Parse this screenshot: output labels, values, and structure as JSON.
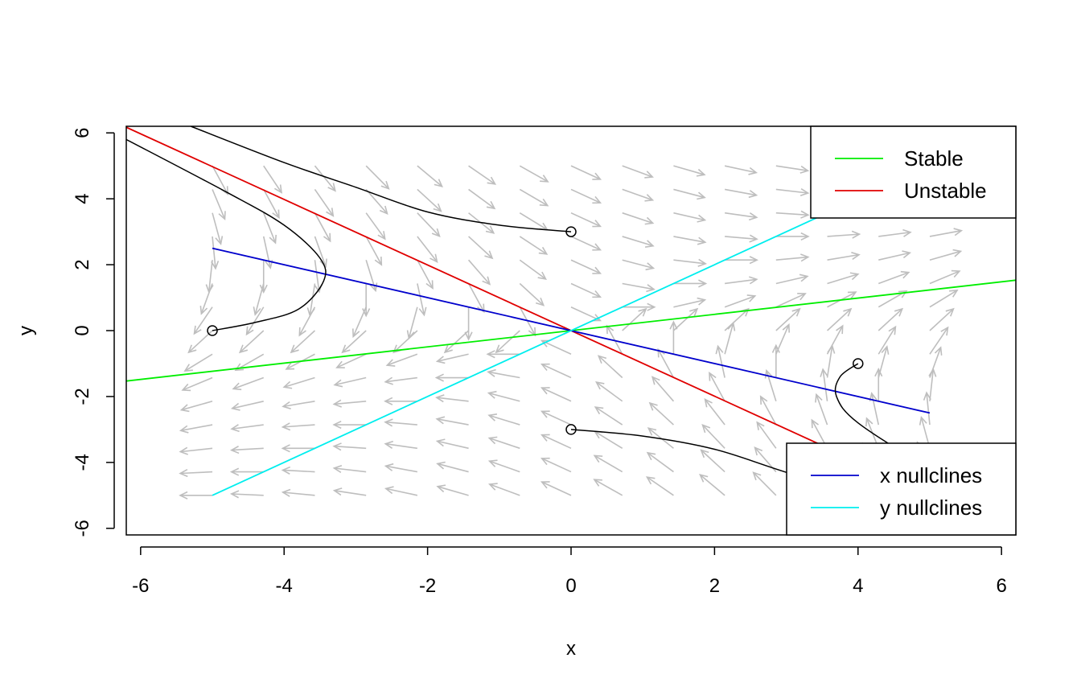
{
  "chart_data": {
    "type": "phase_portrait",
    "title": "",
    "xlabel": "x",
    "ylabel": "y",
    "xlim": [
      -6.2,
      6.2
    ],
    "ylim": [
      -6.2,
      6.2
    ],
    "x_ticks": [
      -6,
      -4,
      -2,
      0,
      2,
      4,
      6
    ],
    "y_ticks": [
      -6,
      -4,
      -2,
      0,
      2,
      4,
      6
    ],
    "x_tick_labels": [
      "-6",
      "-4",
      "-2",
      "0",
      "2",
      "4",
      "6"
    ],
    "y_tick_labels": [
      "-6",
      "-4",
      "-2",
      "0",
      "2",
      "4",
      "6"
    ],
    "grid": false,
    "vector_field": {
      "color": "#bebebe",
      "grid_range": [
        -5,
        5
      ],
      "grid_points": 15,
      "system_matrix": [
        [
          0.5,
          1
        ],
        [
          1,
          -1
        ]
      ]
    },
    "lines": [
      {
        "name": "Stable",
        "color": "#00ee00",
        "points": [
          [
            -6.2,
            -1.53
          ],
          [
            6.2,
            1.53
          ]
        ]
      },
      {
        "name": "Unstable",
        "color": "#e00000",
        "points": [
          [
            -6.2,
            6.17
          ],
          [
            6.2,
            -6.17
          ]
        ]
      },
      {
        "name": "x nullclines",
        "color": "#0000cc",
        "points": [
          [
            -5,
            2.5
          ],
          [
            5,
            -2.5
          ]
        ]
      },
      {
        "name": "y nullclines",
        "color": "#00eeee",
        "points": [
          [
            -5,
            -5
          ],
          [
            5,
            5
          ]
        ]
      }
    ],
    "trajectories": [
      {
        "start": [
          0,
          3
        ],
        "points": [
          [
            0,
            3
          ],
          [
            -1,
            3.2
          ],
          [
            -2,
            3.6
          ],
          [
            -3,
            4.35
          ],
          [
            -4,
            5.1
          ],
          [
            -5.3,
            6.2
          ]
        ]
      },
      {
        "start": [
          -5,
          0
        ],
        "points": [
          [
            -5,
            0
          ],
          [
            -4.4,
            0.25
          ],
          [
            -3.8,
            0.65
          ],
          [
            -3.45,
            1.5
          ],
          [
            -3.5,
            2.2
          ],
          [
            -4,
            3.2
          ],
          [
            -4.8,
            4.2
          ],
          [
            -6.2,
            5.8
          ]
        ]
      },
      {
        "start": [
          0,
          -3
        ],
        "points": [
          [
            0,
            -3
          ],
          [
            1,
            -3.2
          ],
          [
            2,
            -3.6
          ],
          [
            3,
            -4.3
          ],
          [
            4.5,
            -5.3
          ],
          [
            5.5,
            -6.2
          ]
        ]
      },
      {
        "start": [
          4,
          -1
        ],
        "points": [
          [
            4,
            -1
          ],
          [
            3.75,
            -1.4
          ],
          [
            3.7,
            -2
          ],
          [
            4,
            -2.8
          ],
          [
            5,
            -4.2
          ],
          [
            6.2,
            -5.75
          ]
        ]
      }
    ],
    "legends": [
      {
        "position": "top-right",
        "entries": [
          {
            "label": "Stable",
            "color": "#00ee00"
          },
          {
            "label": "Unstable",
            "color": "#e00000"
          }
        ]
      },
      {
        "position": "bottom-right",
        "entries": [
          {
            "label": "x nullclines",
            "color": "#0000cc"
          },
          {
            "label": "y nullclines",
            "color": "#00eeee"
          }
        ]
      }
    ]
  }
}
